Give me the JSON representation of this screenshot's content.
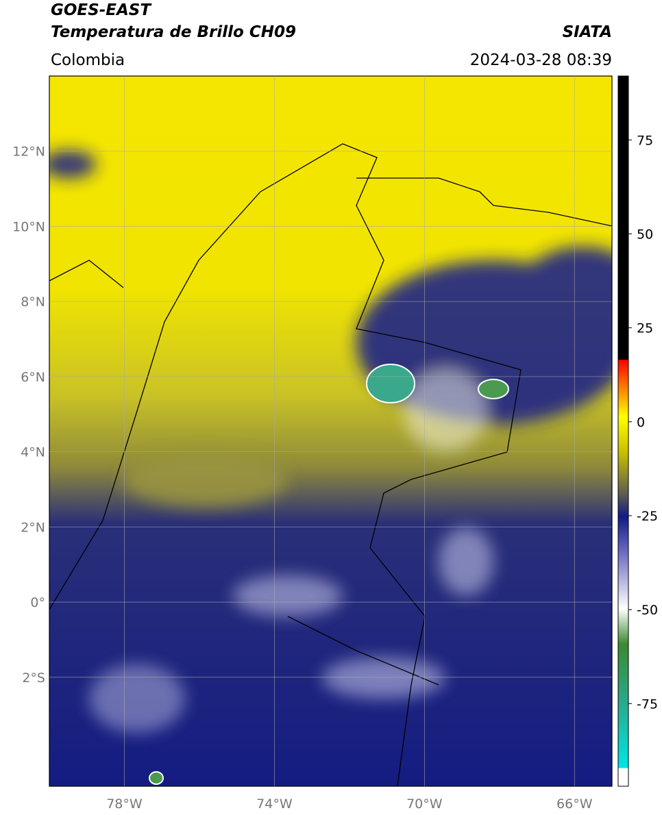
{
  "chart_data": {
    "type": "map",
    "title": "GOES-EAST",
    "subtitle": "Temperatura de Brillo CH09",
    "source": "SIATA",
    "region": "Colombia",
    "timestamp": "2024-03-28 08:39",
    "xlim": [
      -80,
      -65
    ],
    "ylim": [
      -4.9,
      14
    ],
    "xticks": [
      {
        "value": -78,
        "label": "78°W"
      },
      {
        "value": -74,
        "label": "74°W"
      },
      {
        "value": -70,
        "label": "70°W"
      },
      {
        "value": -66,
        "label": "66°W"
      }
    ],
    "yticks": [
      {
        "value": 12,
        "label": "12°N"
      },
      {
        "value": 10,
        "label": "10°N"
      },
      {
        "value": 8,
        "label": "8°N"
      },
      {
        "value": 6,
        "label": "6°N"
      },
      {
        "value": 4,
        "label": "4°N"
      },
      {
        "value": 2,
        "label": "2°N"
      },
      {
        "value": 0,
        "label": "0°"
      },
      {
        "value": -2,
        "label": "2°S"
      }
    ],
    "grid": true,
    "clim": [
      -97,
      92
    ],
    "cticks": [
      75,
      50,
      25,
      0,
      -25,
      -50,
      -75
    ]
  }
}
